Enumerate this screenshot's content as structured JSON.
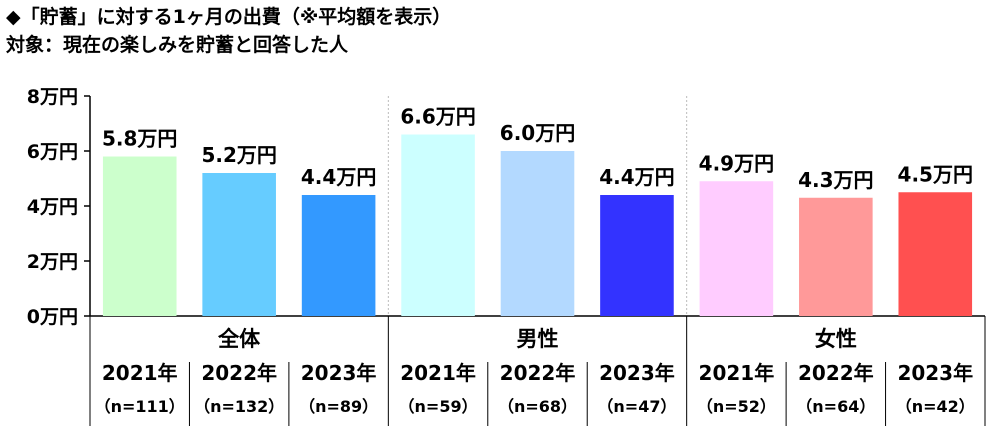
{
  "title": "◆「貯蓄」に対する1ヶ月の出費（※平均額を表示）",
  "subtitle": "対象：現在の楽しみを貯蓄と回答した人",
  "chart_data": {
    "type": "bar",
    "title": "◆「貯蓄」に対する1ヶ月の出費（※平均額を表示）",
    "subtitle": "対象：現在の楽しみを貯蓄と回答した人",
    "ylim": [
      0,
      8
    ],
    "yticks": [
      0,
      2,
      4,
      6,
      8
    ],
    "ytick_labels": [
      "0万円",
      "2万円",
      "4万円",
      "6万円",
      "8万円"
    ],
    "value_unit": "万円",
    "grid": false,
    "groups": [
      {
        "name": "全体",
        "bars": [
          {
            "year": "2021年",
            "n": "（n=111）",
            "value": 5.8,
            "label": "5.8万円",
            "color": "#ccffcc"
          },
          {
            "year": "2022年",
            "n": "（n=132）",
            "value": 5.2,
            "label": "5.2万円",
            "color": "#66ccff"
          },
          {
            "year": "2023年",
            "n": "（n=89）",
            "value": 4.4,
            "label": "4.4万円",
            "color": "#3399ff"
          }
        ]
      },
      {
        "name": "男性",
        "bars": [
          {
            "year": "2021年",
            "n": "（n=59）",
            "value": 6.6,
            "label": "6.6万円",
            "color": "#ccffff"
          },
          {
            "year": "2022年",
            "n": "（n=68）",
            "value": 6.0,
            "label": "6.0万円",
            "color": "#b3d9ff"
          },
          {
            "year": "2023年",
            "n": "（n=47）",
            "value": 4.4,
            "label": "4.4万円",
            "color": "#3333ff"
          }
        ]
      },
      {
        "name": "女性",
        "bars": [
          {
            "year": "2021年",
            "n": "（n=52）",
            "value": 4.9,
            "label": "4.9万円",
            "color": "#ffccff"
          },
          {
            "year": "2022年",
            "n": "（n=64）",
            "value": 4.3,
            "label": "4.3万円",
            "color": "#ff9999"
          },
          {
            "year": "2023年",
            "n": "（n=42）",
            "value": 4.5,
            "label": "4.5万円",
            "color": "#ff5050"
          }
        ]
      }
    ]
  }
}
